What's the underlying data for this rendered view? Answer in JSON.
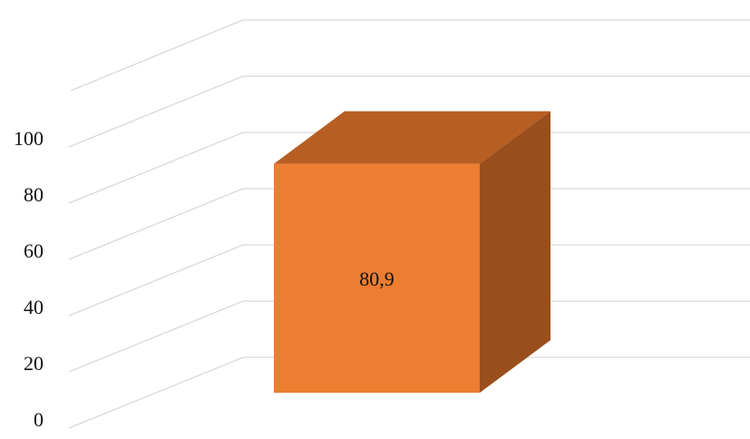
{
  "chart_data": {
    "type": "bar",
    "style": "3d",
    "categories": [
      ""
    ],
    "values": [
      80.9
    ],
    "value_labels": [
      "80,9"
    ],
    "ylim": [
      0,
      100
    ],
    "yticks": [
      {
        "value": 0,
        "label": "0"
      },
      {
        "value": 20,
        "label": "20"
      },
      {
        "value": 40,
        "label": "40"
      },
      {
        "value": 60,
        "label": "60"
      },
      {
        "value": 80,
        "label": "80"
      },
      {
        "value": 100,
        "label": "100"
      }
    ],
    "grid": true,
    "colors": {
      "front": "#ED7D31",
      "top": "#B75E22",
      "side": "#9A4E1C",
      "grid": "#D9D9D9"
    }
  }
}
